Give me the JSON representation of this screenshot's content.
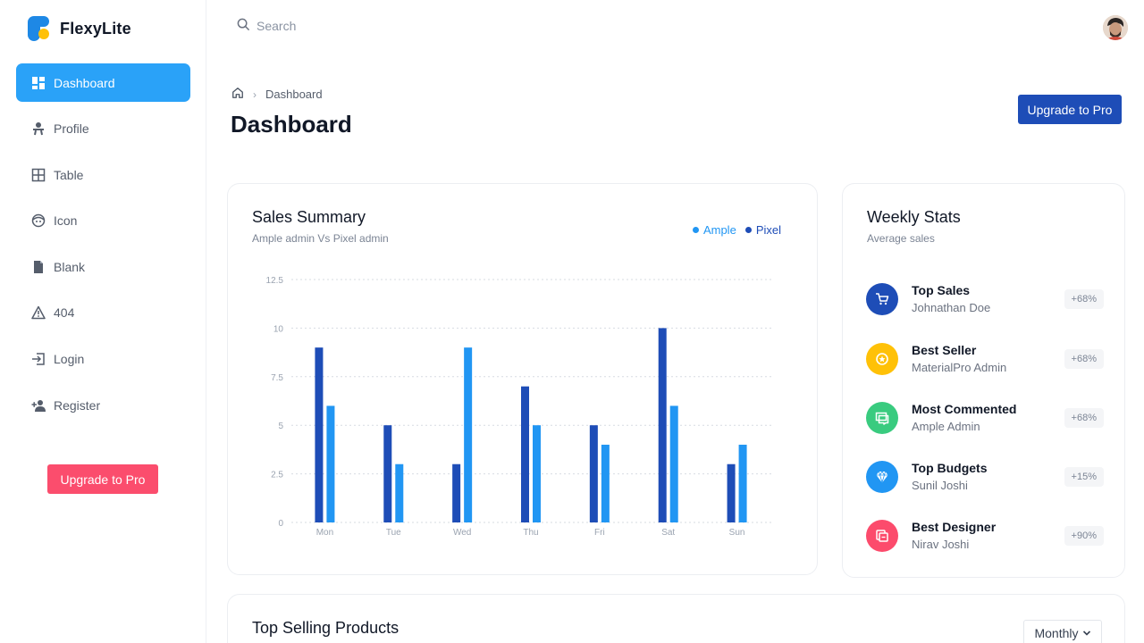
{
  "brand": {
    "name": "FlexyLite"
  },
  "sidebar": {
    "items": [
      {
        "label": "Dashboard",
        "icon": "dashboard-icon",
        "active": true
      },
      {
        "label": "Profile",
        "icon": "profile-icon"
      },
      {
        "label": "Table",
        "icon": "table-icon"
      },
      {
        "label": "Icon",
        "icon": "face-icon"
      },
      {
        "label": "Blank",
        "icon": "file-icon"
      },
      {
        "label": "404",
        "icon": "warning-icon"
      },
      {
        "label": "Login",
        "icon": "login-icon"
      },
      {
        "label": "Register",
        "icon": "add-person-icon"
      }
    ],
    "upgrade_label": "Upgrade to Pro"
  },
  "topbar": {
    "search_placeholder": "Search"
  },
  "header": {
    "breadcrumb": "Dashboard",
    "title": "Dashboard",
    "upgrade_label": "Upgrade to Pro"
  },
  "sales_summary": {
    "title": "Sales Summary",
    "subtitle": "Ample admin Vs Pixel admin",
    "legend": [
      {
        "name": "Ample",
        "color": "#2196f3"
      },
      {
        "name": "Pixel",
        "color": "#1e4db7"
      }
    ]
  },
  "chart_data": {
    "type": "bar",
    "categories": [
      "Mon",
      "Tue",
      "Wed",
      "Thu",
      "Fri",
      "Sat",
      "Sun"
    ],
    "series": [
      {
        "name": "Pixel",
        "color": "#1e4db7",
        "values": [
          9,
          5,
          3,
          7,
          5,
          10,
          3
        ]
      },
      {
        "name": "Ample",
        "color": "#2196f3",
        "values": [
          6,
          3,
          9,
          5,
          4,
          6,
          4
        ]
      }
    ],
    "yticks": [
      "0",
      "2.5",
      "5",
      "7.5",
      "10",
      "12.5"
    ],
    "ylim": [
      0,
      12.5
    ],
    "grid": true,
    "legend": "top-right"
  },
  "weekly_stats": {
    "title": "Weekly Stats",
    "subtitle": "Average sales",
    "items": [
      {
        "name": "Top Sales",
        "who": "Johnathan Doe",
        "badge": "+68%",
        "color": "#1e4db7",
        "icon": "cart-icon"
      },
      {
        "name": "Best Seller",
        "who": "MaterialPro Admin",
        "badge": "+68%",
        "color": "#ffc107",
        "icon": "star-icon"
      },
      {
        "name": "Most Commented",
        "who": "Ample Admin",
        "badge": "+68%",
        "color": "#39cb7f",
        "icon": "comment-icon"
      },
      {
        "name": "Top Budgets",
        "who": "Sunil Joshi",
        "badge": "+15%",
        "color": "#2196f3",
        "icon": "diamond-icon"
      },
      {
        "name": "Best Designer",
        "who": "Nirav Joshi",
        "badge": "+90%",
        "color": "#fc4b6c",
        "icon": "copy-icon"
      }
    ]
  },
  "top_selling": {
    "title": "Top Selling Products",
    "period": "Monthly"
  }
}
